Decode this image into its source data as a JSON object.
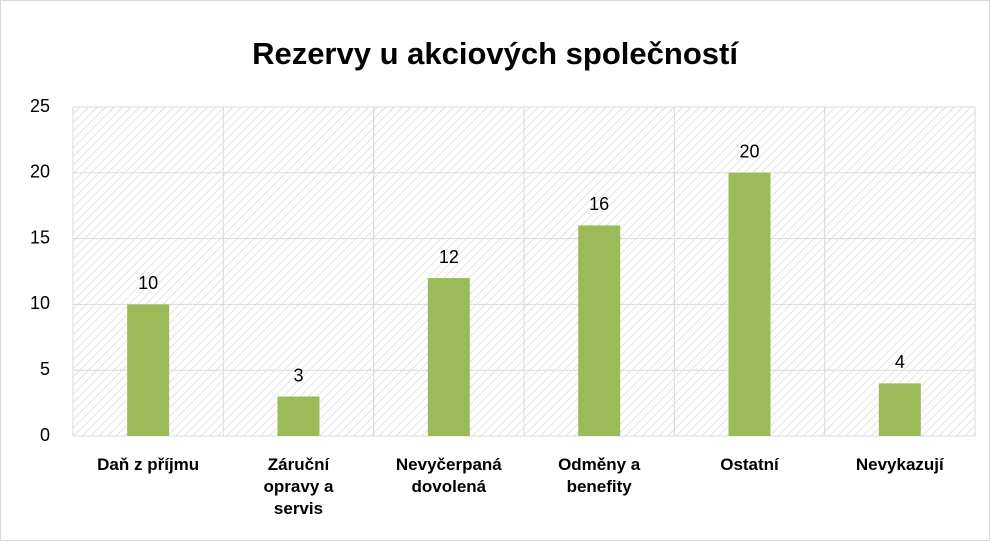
{
  "chart_data": {
    "type": "bar",
    "title": "Rezervy u akciových společností",
    "categories": [
      "Daň z příjmu",
      "Záruční opravy a servis",
      "Nevyčerpaná dovolená",
      "Odměny a benefity",
      "Ostatní",
      "Nevykazují"
    ],
    "values": [
      10,
      3,
      12,
      16,
      20,
      4
    ],
    "color": "#9bbb59",
    "ylim": [
      0,
      25
    ],
    "yticks": [
      0,
      5,
      10,
      15,
      20,
      25
    ],
    "grid": true
  }
}
